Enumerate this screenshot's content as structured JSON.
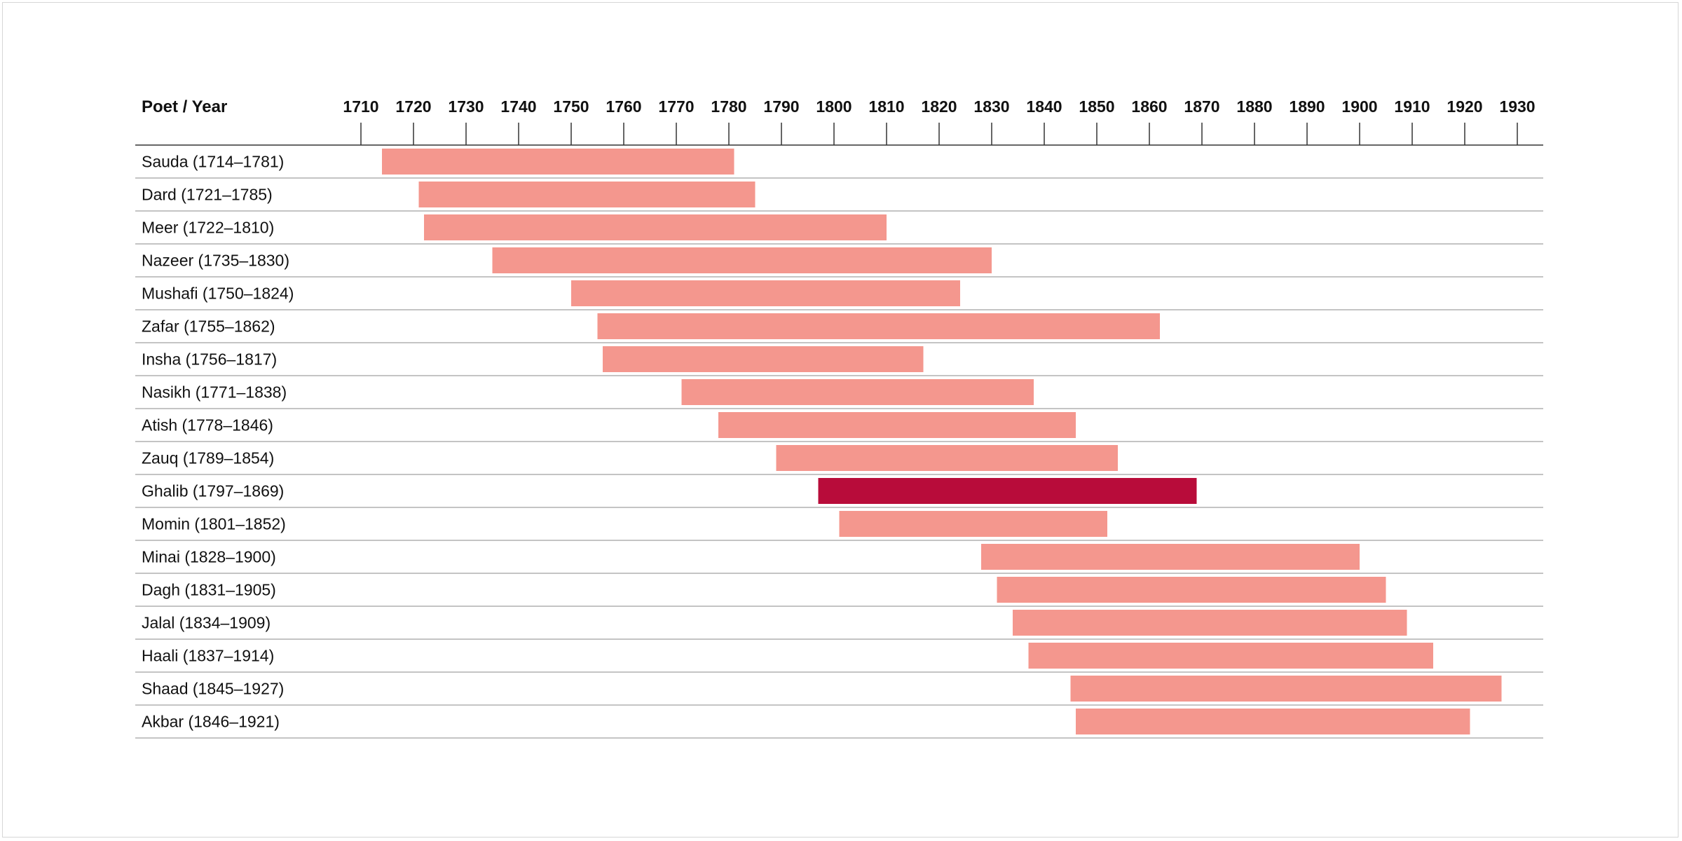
{
  "chart_data": {
    "type": "bar",
    "orientation": "horizontal-range",
    "header_label": "Poet / Year",
    "x_ticks": [
      1710,
      1720,
      1730,
      1740,
      1750,
      1760,
      1770,
      1780,
      1790,
      1800,
      1810,
      1820,
      1830,
      1840,
      1850,
      1860,
      1870,
      1880,
      1890,
      1900,
      1910,
      1920,
      1930
    ],
    "xlim": [
      1710,
      1930
    ],
    "grid": "horizontal row separators",
    "colors": {
      "default_bar": "#f4978e",
      "highlight_bar": "#b80c3a",
      "row_line": "#888888",
      "axis": "#333333"
    },
    "rows": [
      {
        "label": "Sauda (1714–1781)",
        "start": 1714,
        "end": 1781,
        "highlight": false
      },
      {
        "label": "Dard (1721–1785)",
        "start": 1721,
        "end": 1785,
        "highlight": false
      },
      {
        "label": "Meer (1722–1810)",
        "start": 1722,
        "end": 1810,
        "highlight": false
      },
      {
        "label": "Nazeer (1735–1830)",
        "start": 1735,
        "end": 1830,
        "highlight": false
      },
      {
        "label": "Mushafi (1750–1824)",
        "start": 1750,
        "end": 1824,
        "highlight": false
      },
      {
        "label": "Zafar (1755–1862)",
        "start": 1755,
        "end": 1862,
        "highlight": false
      },
      {
        "label": "Insha (1756–1817)",
        "start": 1756,
        "end": 1817,
        "highlight": false
      },
      {
        "label": "Nasikh (1771–1838)",
        "start": 1771,
        "end": 1838,
        "highlight": false
      },
      {
        "label": "Atish (1778–1846)",
        "start": 1778,
        "end": 1846,
        "highlight": false
      },
      {
        "label": "Zauq (1789–1854)",
        "start": 1789,
        "end": 1854,
        "highlight": false
      },
      {
        "label": "Ghalib (1797–1869)",
        "start": 1797,
        "end": 1869,
        "highlight": true
      },
      {
        "label": "Momin (1801–1852)",
        "start": 1801,
        "end": 1852,
        "highlight": false
      },
      {
        "label": "Minai (1828–1900)",
        "start": 1828,
        "end": 1900,
        "highlight": false
      },
      {
        "label": "Dagh (1831–1905)",
        "start": 1831,
        "end": 1905,
        "highlight": false
      },
      {
        "label": "Jalal (1834–1909)",
        "start": 1834,
        "end": 1909,
        "highlight": false
      },
      {
        "label": "Haali (1837–1914)",
        "start": 1837,
        "end": 1914,
        "highlight": false
      },
      {
        "label": "Shaad (1845–1927)",
        "start": 1845,
        "end": 1927,
        "highlight": false
      },
      {
        "label": "Akbar (1846–1921)",
        "start": 1846,
        "end": 1921,
        "highlight": false
      }
    ]
  }
}
